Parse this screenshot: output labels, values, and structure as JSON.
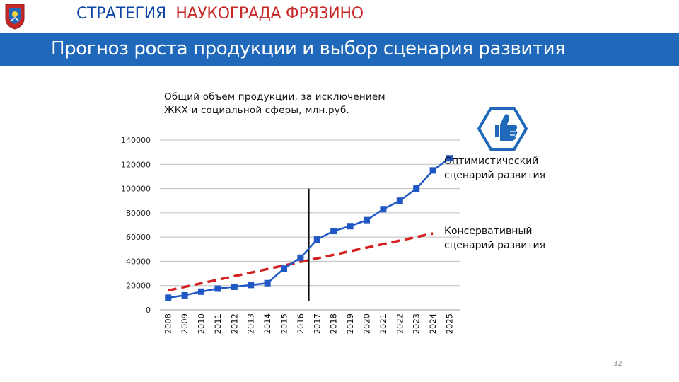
{
  "header": {
    "title_main": "СТРАТЕГИЯ",
    "title_accent": "НАУКОГРАДА ФРЯЗИНО"
  },
  "banner": {
    "title": "Прогноз роста продукции и выбор сценария развития"
  },
  "colors": {
    "brand_blue": "#1f68ba",
    "header_blue": "#0d47a1",
    "accent_red": "#c62828",
    "series_blue": "#1f57c4",
    "trend_red": "#d42020",
    "icon_blue": "#1f68ba"
  },
  "icons": {
    "crest": "city-crest-icon",
    "thumbs_up": "thumbs-up-icon"
  },
  "chart_data": {
    "type": "line",
    "title": "Общий объем продукции, за исключением ЖКХ и социальной сферы, млн.руб.",
    "title_lines": [
      "Общий объем продукции, за исключением",
      "ЖКХ и социальной сферы, млн.руб."
    ],
    "x": [
      "2008",
      "2009",
      "2010",
      "2011",
      "2012",
      "2013",
      "2014",
      "2015",
      "2016",
      "2017",
      "2018",
      "2019",
      "2020",
      "2021",
      "2022",
      "2023",
      "2024",
      "2025"
    ],
    "ylim": [
      0,
      140000
    ],
    "yticks": [
      "0",
      "20000",
      "40000",
      "60000",
      "80000",
      "100000",
      "120000",
      "140000"
    ],
    "grid": true,
    "series": [
      {
        "values": [
          10000,
          12000,
          15000,
          17500,
          19000,
          20500,
          22000,
          34000,
          43000,
          58000,
          65000,
          69000,
          74000,
          83000,
          90000,
          100000,
          115000,
          125000
        ],
        "style": "solid line with square markers"
      }
    ],
    "trendline": {
      "style": "red dashed",
      "from": {
        "x": "2008",
        "y": 16000
      },
      "to": {
        "x": "2024",
        "y": 63000
      }
    },
    "divider": {
      "between": [
        "2016",
        "2017"
      ],
      "top": 100000
    },
    "annotations": {
      "optimistic": [
        "Оптимистический",
        "сценарий развития"
      ],
      "conservative": [
        "Консервативный",
        "сценарий развития"
      ]
    }
  },
  "footer": {
    "page_number": "32"
  }
}
